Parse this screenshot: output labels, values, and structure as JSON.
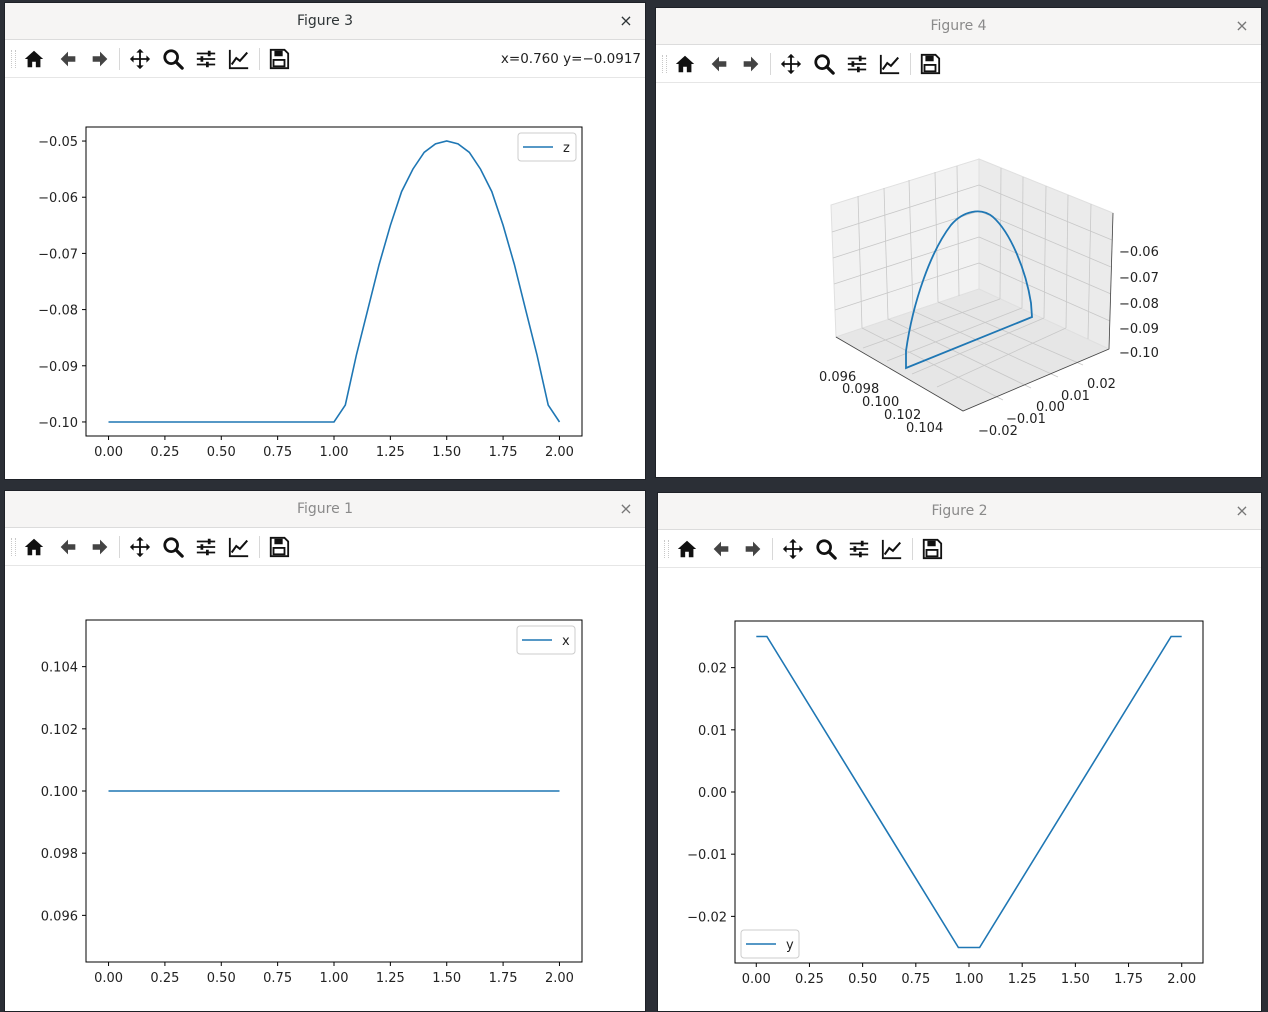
{
  "windows": {
    "figure3": {
      "title": "Figure 3",
      "close": "×",
      "coords": "x=0.760 y=−0.0917",
      "chart_data": {
        "type": "line",
        "series": [
          {
            "name": "z",
            "color": "#1f77b4"
          }
        ],
        "x": [
          0.0,
          0.25,
          0.5,
          0.75,
          1.0,
          1.05,
          1.1,
          1.15,
          1.2,
          1.25,
          1.3,
          1.35,
          1.4,
          1.45,
          1.5,
          1.55,
          1.6,
          1.65,
          1.7,
          1.75,
          1.8,
          1.85,
          1.9,
          1.95,
          2.0
        ],
        "y": [
          -0.1,
          -0.1,
          -0.1,
          -0.1,
          -0.1,
          -0.097,
          -0.088,
          -0.08,
          -0.072,
          -0.065,
          -0.059,
          -0.055,
          -0.052,
          -0.0505,
          -0.05,
          -0.0505,
          -0.052,
          -0.055,
          -0.059,
          -0.065,
          -0.072,
          -0.08,
          -0.088,
          -0.097,
          -0.1
        ],
        "xticks": [
          "0.00",
          "0.25",
          "0.50",
          "0.75",
          "1.00",
          "1.25",
          "1.50",
          "1.75",
          "2.00"
        ],
        "yticks": [
          "−0.10",
          "−0.09",
          "−0.08",
          "−0.07",
          "−0.06",
          "−0.05"
        ],
        "xlim": [
          -0.1,
          2.1
        ],
        "ylim": [
          -0.1025,
          -0.0475
        ],
        "legend": "upper right"
      }
    },
    "figure4": {
      "title": "Figure 4",
      "close": "×",
      "chart_data": {
        "type": "line",
        "projection": "3d",
        "series": [
          {
            "name": "",
            "color": "#1f77b4"
          }
        ],
        "x_ticks": [
          "0.096",
          "0.098",
          "0.100",
          "0.102",
          "0.104"
        ],
        "y_ticks": [
          "−0.02",
          "−0.01",
          "0.00",
          "0.01",
          "0.02"
        ],
        "z_ticks": [
          "−0.10",
          "−0.09",
          "−0.08",
          "−0.07",
          "−0.06"
        ]
      }
    },
    "figure1": {
      "title": "Figure 1",
      "close": "×",
      "chart_data": {
        "type": "line",
        "series": [
          {
            "name": "x",
            "color": "#1f77b4"
          }
        ],
        "x": [
          0.0,
          2.0
        ],
        "y": [
          0.1,
          0.1
        ],
        "xticks": [
          "0.00",
          "0.25",
          "0.50",
          "0.75",
          "1.00",
          "1.25",
          "1.50",
          "1.75",
          "2.00"
        ],
        "yticks": [
          "0.096",
          "0.098",
          "0.100",
          "0.102",
          "0.104"
        ],
        "xlim": [
          -0.1,
          2.1
        ],
        "ylim": [
          0.0945,
          0.1055
        ],
        "legend": "upper right"
      }
    },
    "figure2": {
      "title": "Figure 2",
      "close": "×",
      "chart_data": {
        "type": "line",
        "series": [
          {
            "name": "y",
            "color": "#1f77b4"
          }
        ],
        "x": [
          0.0,
          0.05,
          0.95,
          1.05,
          1.95,
          2.0
        ],
        "y": [
          0.025,
          0.025,
          -0.025,
          -0.025,
          0.025,
          0.025
        ],
        "xticks": [
          "0.00",
          "0.25",
          "0.50",
          "0.75",
          "1.00",
          "1.25",
          "1.50",
          "1.75",
          "2.00"
        ],
        "yticks": [
          "−0.02",
          "−0.01",
          "0.00",
          "0.01",
          "0.02"
        ],
        "xlim": [
          -0.1,
          2.1
        ],
        "ylim": [
          -0.0275,
          0.0275
        ],
        "legend": "lower left"
      }
    }
  },
  "toolbar_icons": [
    "home-icon",
    "back-arrow-icon",
    "forward-arrow-icon",
    "pan-icon",
    "zoom-icon",
    "subplots-icon",
    "edit-axis-icon",
    "save-icon"
  ]
}
